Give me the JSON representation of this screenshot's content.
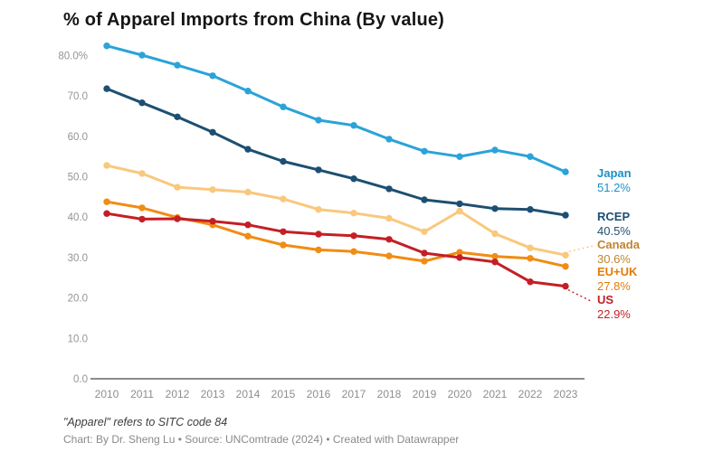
{
  "title": "% of Apparel Imports from China (By value)",
  "footnote": "\"Apparel\" refers to SITC code 84",
  "credit": "Chart: By Dr. Sheng Lu • Source: UNComtrade (2024) • Created with Datawrapper",
  "chart_data": {
    "type": "line",
    "x": [
      2010,
      2011,
      2012,
      2013,
      2014,
      2015,
      2016,
      2017,
      2018,
      2019,
      2020,
      2021,
      2022,
      2023
    ],
    "title": "% of Apparel Imports from China (By value)",
    "xlabel": "",
    "ylabel": "",
    "ylim": [
      0,
      85
    ],
    "grid": false,
    "legend_position": "right-direct-labels",
    "ytick_labels": [
      "80.0%",
      "70.0",
      "60.0",
      "50.0",
      "40.0",
      "30.0",
      "20.0",
      "10.0",
      "0.0"
    ],
    "ytick_values": [
      80,
      70,
      60,
      50,
      40,
      30,
      20,
      10,
      0
    ],
    "axis_color": "#8c8c8c",
    "tick_text_color": "#949494",
    "series": [
      {
        "name": "Japan",
        "final_label": "51.2%",
        "color": "#2aa3d8",
        "label_color": "#1e8fc4",
        "values": [
          82.4,
          80.1,
          77.6,
          75.0,
          71.2,
          67.3,
          64.0,
          62.7,
          59.3,
          56.3,
          55.0,
          56.6,
          55.0,
          51.2
        ]
      },
      {
        "name": "RCEP",
        "final_label": "40.5%",
        "color": "#1d4f72",
        "label_color": "#1d4f72",
        "values": [
          71.8,
          68.3,
          64.8,
          61.0,
          56.8,
          53.8,
          51.7,
          49.5,
          47.0,
          44.3,
          43.3,
          42.1,
          41.9,
          40.5
        ]
      },
      {
        "name": "Canada",
        "final_label": "30.6%",
        "color": "#f9c87d",
        "label_color": "#c08530",
        "values": [
          52.8,
          50.8,
          47.4,
          46.8,
          46.2,
          44.5,
          41.9,
          41.0,
          39.7,
          36.4,
          41.5,
          35.9,
          32.4,
          30.6
        ]
      },
      {
        "name": "EU+UK",
        "final_label": "27.8%",
        "color": "#f18c14",
        "label_color": "#e07d0a",
        "values": [
          43.8,
          42.3,
          39.9,
          38.1,
          35.3,
          33.1,
          31.9,
          31.5,
          30.4,
          29.1,
          31.3,
          30.3,
          29.8,
          27.8
        ]
      },
      {
        "name": "US",
        "final_label": "22.9%",
        "color": "#c41f26",
        "label_color": "#c41f26",
        "values": [
          40.9,
          39.5,
          39.6,
          39.0,
          38.1,
          36.4,
          35.8,
          35.4,
          34.5,
          31.1,
          30.0,
          28.9,
          24.0,
          22.9
        ]
      }
    ]
  }
}
